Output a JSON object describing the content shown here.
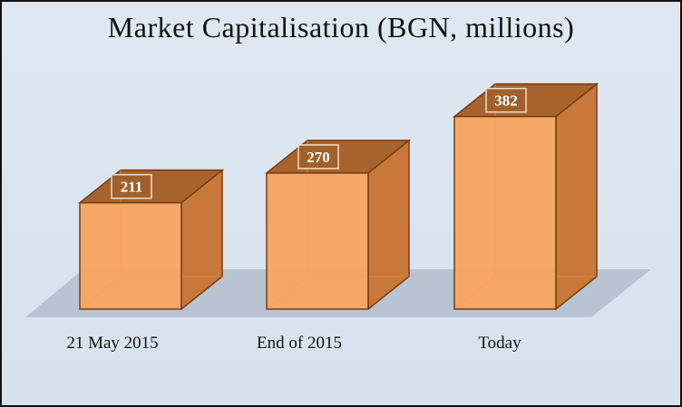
{
  "chart_data": {
    "type": "bar",
    "title": "Market Capitalisation  (BGN, millions)",
    "categories": [
      "21 May 2015",
      "End of 2015",
      "Today"
    ],
    "values": [
      211,
      270,
      382
    ],
    "data_labels": [
      "211",
      "270",
      "382"
    ],
    "xlabel": "",
    "ylabel": "",
    "grid": false,
    "legend": "none",
    "style": "3d",
    "colors": {
      "bar_front": "#f7a35c",
      "bar_side": "#c8783a",
      "bar_top": "#a8632c",
      "bar_edge": "#7a3d10",
      "floor": "#b8c4d2",
      "label_box": "#a0602a"
    }
  }
}
